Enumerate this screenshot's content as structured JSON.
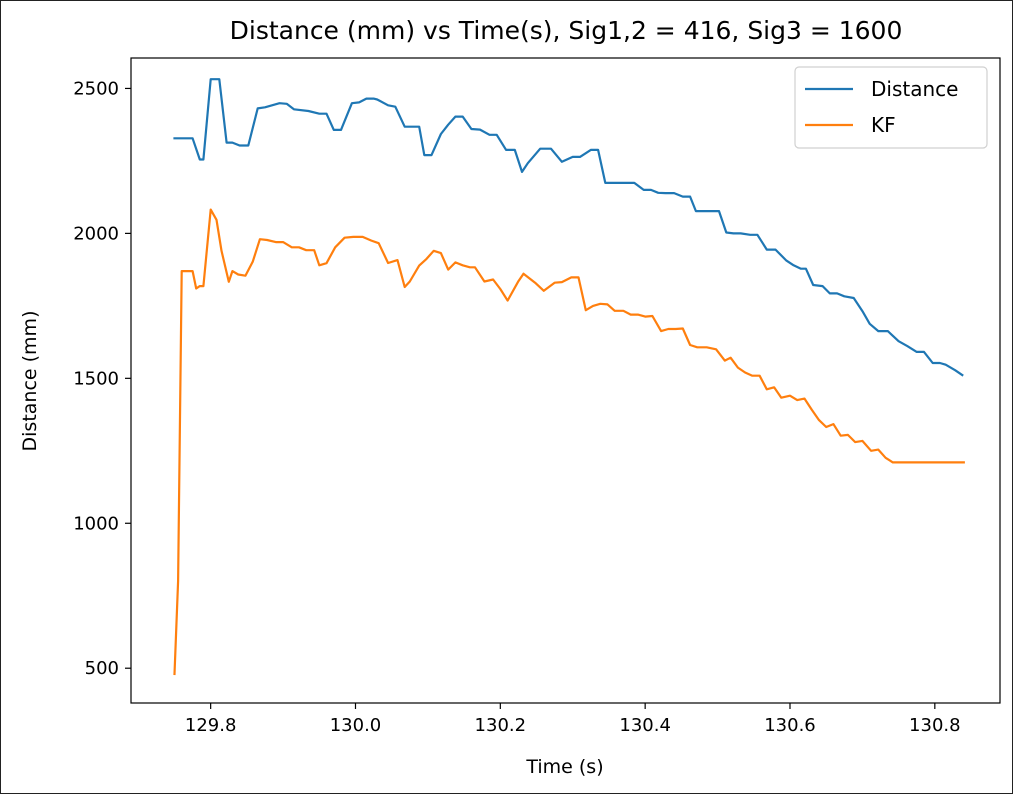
{
  "chart_data": {
    "type": "line",
    "title": "Distance (mm) vs Time(s), Sig1,2 = 416, Sig3 = 1600",
    "xlabel": "Time (s)",
    "ylabel": "Distance (mm)",
    "xlim": [
      129.69,
      130.89
    ],
    "ylim": [
      380,
      2605
    ],
    "xticks": [
      129.8,
      130.0,
      130.2,
      130.4,
      130.6,
      130.8
    ],
    "xtick_labels": [
      "129.8",
      "130.0",
      "130.2",
      "130.4",
      "130.6",
      "130.8"
    ],
    "yticks": [
      500,
      1000,
      1500,
      2000,
      2500
    ],
    "ytick_labels": [
      "500",
      "1000",
      "1500",
      "2000",
      "2500"
    ],
    "grid": false,
    "legend_position": "top-right",
    "series": [
      {
        "name": "Distance",
        "color": "#1f77b4",
        "x": [
          129.75,
          129.77,
          129.775,
          129.785,
          129.79,
          129.8,
          129.805,
          129.812,
          129.822,
          129.83,
          129.84,
          129.852,
          129.865,
          129.875,
          129.895,
          129.905,
          129.915,
          129.935,
          129.95,
          129.96,
          129.97,
          129.98,
          129.995,
          130.005,
          130.015,
          130.025,
          130.03,
          130.045,
          130.055,
          130.068,
          130.075,
          130.088,
          130.095,
          130.105,
          130.118,
          130.128,
          130.138,
          130.148,
          130.16,
          130.172,
          130.185,
          130.195,
          130.208,
          130.22,
          130.23,
          130.238,
          130.255,
          130.27,
          130.285,
          130.3,
          130.31,
          130.325,
          130.335,
          130.345,
          130.36,
          130.372,
          130.385,
          130.398,
          130.408,
          130.418,
          130.428,
          130.44,
          130.452,
          130.462,
          130.47,
          130.48,
          130.492,
          130.502,
          130.512,
          130.522,
          130.532,
          130.545,
          130.555,
          130.568,
          130.58,
          130.595,
          130.605,
          130.615,
          130.622,
          130.632,
          130.645,
          130.655,
          130.665,
          130.675,
          130.688,
          130.7,
          130.71,
          130.722,
          130.735,
          130.75,
          130.762,
          130.775,
          130.785,
          130.797,
          130.807,
          130.815,
          130.828,
          130.838
        ],
        "y": [
          2328,
          2328,
          2328,
          2255,
          2255,
          2532,
          2532,
          2532,
          2313,
          2313,
          2303,
          2303,
          2431,
          2435,
          2449,
          2447,
          2428,
          2422,
          2413,
          2413,
          2357,
          2357,
          2449,
          2452,
          2465,
          2465,
          2462,
          2442,
          2437,
          2368,
          2368,
          2368,
          2270,
          2270,
          2343,
          2375,
          2403,
          2403,
          2360,
          2358,
          2340,
          2340,
          2288,
          2288,
          2212,
          2242,
          2292,
          2292,
          2247,
          2264,
          2264,
          2288,
          2288,
          2174,
          2174,
          2174,
          2174,
          2150,
          2150,
          2140,
          2139,
          2139,
          2127,
          2127,
          2077,
          2077,
          2077,
          2077,
          2003,
          2000,
          2000,
          1995,
          1995,
          1944,
          1944,
          1906,
          1890,
          1878,
          1878,
          1822,
          1818,
          1793,
          1793,
          1783,
          1777,
          1732,
          1688,
          1663,
          1663,
          1628,
          1611,
          1591,
          1591,
          1553,
          1553,
          1547,
          1528,
          1511
        ]
      },
      {
        "name": "KF",
        "color": "#ff7f0e",
        "x": [
          129.75,
          129.755,
          129.76,
          129.77,
          129.775,
          129.78,
          129.785,
          129.79,
          129.8,
          129.808,
          129.815,
          129.825,
          129.83,
          129.838,
          129.848,
          129.858,
          129.868,
          129.878,
          129.89,
          129.9,
          129.912,
          129.922,
          129.932,
          129.943,
          129.95,
          129.96,
          129.972,
          129.985,
          129.997,
          130.01,
          130.022,
          130.032,
          130.045,
          130.058,
          130.068,
          130.075,
          130.088,
          130.098,
          130.108,
          130.118,
          130.128,
          130.138,
          130.148,
          130.158,
          130.165,
          130.178,
          130.19,
          130.2,
          130.21,
          130.225,
          130.232,
          130.248,
          130.26,
          130.275,
          130.285,
          130.298,
          130.308,
          130.318,
          130.328,
          130.338,
          130.348,
          130.358,
          130.37,
          130.38,
          130.39,
          130.4,
          130.41,
          130.422,
          130.432,
          130.442,
          130.452,
          130.462,
          130.472,
          130.485,
          130.498,
          130.51,
          130.518,
          130.528,
          130.538,
          130.548,
          130.558,
          130.568,
          130.578,
          130.588,
          130.6,
          130.61,
          130.62,
          130.63,
          130.64,
          130.65,
          130.66,
          130.67,
          130.68,
          130.69,
          130.7,
          130.712,
          130.722,
          130.732,
          130.742,
          130.752,
          130.762,
          130.772,
          130.782,
          130.792,
          130.802,
          130.812,
          130.822,
          130.832,
          130.84
        ],
        "y": [
          480,
          800,
          1870,
          1870,
          1870,
          1810,
          1818,
          1818,
          2082,
          2047,
          1940,
          1833,
          1870,
          1858,
          1854,
          1902,
          1980,
          1977,
          1970,
          1970,
          1952,
          1952,
          1942,
          1942,
          1890,
          1897,
          1952,
          1985,
          1988,
          1988,
          1975,
          1966,
          1898,
          1908,
          1815,
          1834,
          1889,
          1912,
          1940,
          1932,
          1875,
          1900,
          1890,
          1883,
          1883,
          1834,
          1841,
          1808,
          1768,
          1835,
          1861,
          1830,
          1802,
          1830,
          1832,
          1848,
          1848,
          1735,
          1750,
          1757,
          1755,
          1733,
          1733,
          1720,
          1720,
          1713,
          1715,
          1663,
          1670,
          1670,
          1672,
          1615,
          1607,
          1607,
          1600,
          1561,
          1571,
          1537,
          1520,
          1509,
          1509,
          1462,
          1469,
          1433,
          1440,
          1425,
          1430,
          1392,
          1356,
          1332,
          1342,
          1302,
          1305,
          1280,
          1284,
          1250,
          1254,
          1226,
          1210,
          1210,
          1210,
          1210,
          1210,
          1210,
          1210,
          1210,
          1210,
          1210,
          1210
        ]
      }
    ]
  }
}
